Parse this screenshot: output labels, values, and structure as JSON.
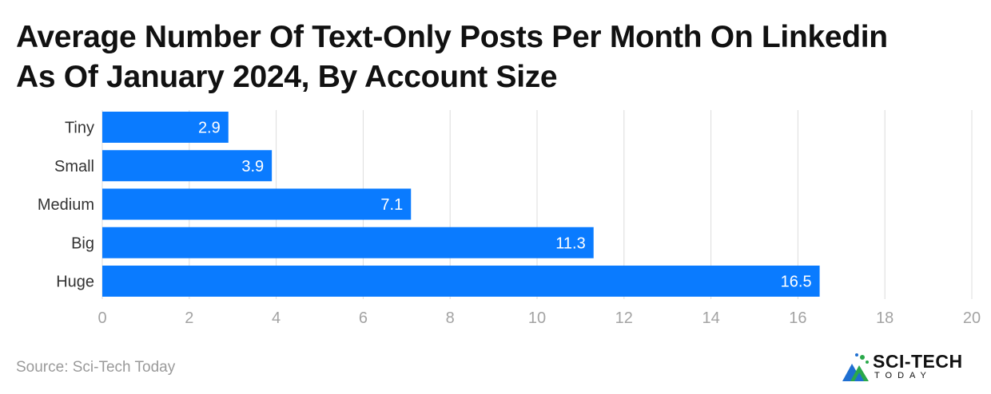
{
  "title": {
    "line1": "Average Number Of Text-Only Posts Per Month On Linkedin",
    "line2": "As Of January 2024, By Account Size"
  },
  "source": "Source: Sci-Tech Today",
  "logo": {
    "name": "SCI-TECH",
    "sub": "TODAY",
    "icon": "sci-tech-mountain-icon"
  },
  "colors": {
    "bar": "#0a7bff",
    "bar_label": "#ffffff",
    "grid": "#dcdcdc",
    "tick": "#a3a3a3",
    "category": "#333333"
  },
  "chart_data": {
    "type": "bar",
    "orientation": "horizontal",
    "categories": [
      "Tiny",
      "Small",
      "Medium",
      "Big",
      "Huge"
    ],
    "values": [
      2.9,
      3.9,
      7.1,
      11.3,
      16.5
    ],
    "value_labels": [
      "2.9",
      "3.9",
      "7.1",
      "11.3",
      "16.5"
    ],
    "xlim": [
      0,
      20
    ],
    "xticks": [
      "0",
      "2",
      "4",
      "6",
      "8",
      "10",
      "12",
      "14",
      "16",
      "18",
      "20"
    ],
    "grid": true,
    "legend": "none"
  }
}
